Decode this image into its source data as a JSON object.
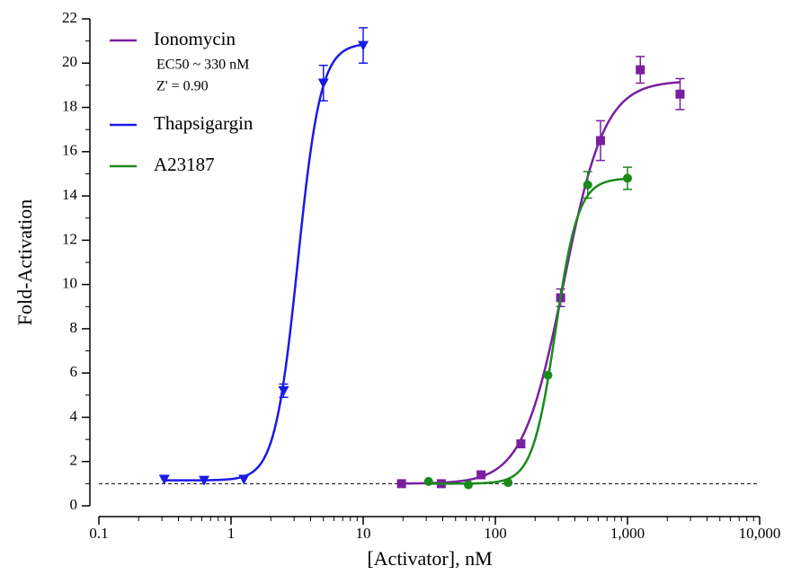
{
  "chart_data": {
    "type": "dose-response",
    "x_label": "[Activator], nM",
    "y_label": "Fold-Activation",
    "xscale": "log",
    "xlim": [
      0.1,
      10000
    ],
    "xticks": [
      0.1,
      1,
      10,
      100,
      {
        "value": 1000,
        "label": "1,000"
      },
      {
        "value": 10000,
        "label": "10,000"
      }
    ],
    "ylim": [
      0,
      22
    ],
    "yticks": [
      0,
      2,
      4,
      6,
      8,
      10,
      12,
      14,
      16,
      18,
      20,
      22
    ],
    "reference_line": 1,
    "legend": "upper-left",
    "series": [
      {
        "name": "Ionomycin",
        "color": "#7a1fa2",
        "marker": "square",
        "annotation": [
          "EC50 ~ 330 nM",
          "Z' = 0.90"
        ],
        "x": [
          19.5,
          39,
          78,
          156,
          312,
          625,
          1250,
          2500
        ],
        "values": [
          1.0,
          1.0,
          1.4,
          2.8,
          9.4,
          16.5,
          19.7,
          18.6
        ],
        "errors": [
          0,
          0,
          0,
          0,
          0.4,
          0.9,
          0.6,
          0.7
        ],
        "fit": {
          "bottom": 1.0,
          "top": 19.2,
          "ec50": 330,
          "hill": 2.8
        }
      },
      {
        "name": "Thapsigargin",
        "color": "#1a1ae6",
        "marker": "triangle-down",
        "x": [
          0.3125,
          0.625,
          1.25,
          2.5,
          5,
          10
        ],
        "values": [
          1.2,
          1.15,
          1.2,
          5.2,
          19.1,
          20.8
        ],
        "errors": [
          0,
          0,
          0,
          0.3,
          0.8,
          0.8
        ],
        "fit": {
          "bottom": 1.15,
          "top": 20.9,
          "ec50": 3.2,
          "hill": 5
        }
      },
      {
        "name": "A23187",
        "color": "#1a8a1a",
        "marker": "circle",
        "x": [
          31.25,
          62.5,
          125,
          250,
          500,
          1000
        ],
        "values": [
          1.1,
          0.95,
          1.05,
          5.9,
          14.5,
          14.8
        ],
        "errors": [
          0,
          0,
          0,
          0,
          0.6,
          0.5
        ],
        "fit": {
          "bottom": 1.0,
          "top": 14.8,
          "ec50": 285,
          "hill": 5
        }
      }
    ]
  }
}
